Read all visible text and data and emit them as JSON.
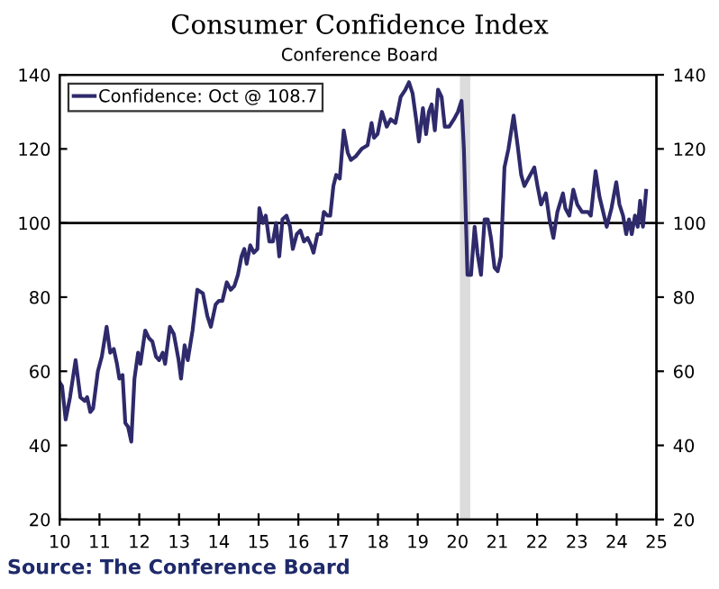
{
  "chart_data": {
    "type": "line",
    "title": "Consumer Confidence Index",
    "subtitle": "Conference Board",
    "annotations": [
      "Source: The Conference Board"
    ],
    "x": [
      2010.0,
      2010.06,
      2010.15,
      2010.26,
      2010.4,
      2010.52,
      2010.63,
      2010.69,
      2010.77,
      2010.84,
      2010.96,
      2011.06,
      2011.18,
      2011.27,
      2011.36,
      2011.44,
      2011.5,
      2011.58,
      2011.65,
      2011.72,
      2011.8,
      2011.88,
      2011.97,
      2012.03,
      2012.15,
      2012.24,
      2012.33,
      2012.42,
      2012.5,
      2012.59,
      2012.65,
      2012.77,
      2012.87,
      2012.99,
      2013.05,
      2013.14,
      2013.22,
      2013.34,
      2013.46,
      2013.6,
      2013.71,
      2013.8,
      2013.92,
      2014.0,
      2014.09,
      2014.2,
      2014.3,
      2014.39,
      2014.48,
      2014.57,
      2014.64,
      2014.7,
      2014.79,
      2014.88,
      2014.97,
      2015.02,
      2015.11,
      2015.18,
      2015.27,
      2015.36,
      2015.44,
      2015.52,
      2015.6,
      2015.7,
      2015.79,
      2015.86,
      2015.96,
      2016.05,
      2016.14,
      2016.23,
      2016.32,
      2016.38,
      2016.48,
      2016.56,
      2016.64,
      2016.73,
      2016.8,
      2016.88,
      2016.95,
      2017.04,
      2017.14,
      2017.24,
      2017.32,
      2017.44,
      2017.59,
      2017.74,
      2017.84,
      2017.9,
      2017.99,
      2018.1,
      2018.22,
      2018.32,
      2018.44,
      2018.57,
      2018.69,
      2018.78,
      2018.87,
      2018.96,
      2019.03,
      2019.13,
      2019.21,
      2019.28,
      2019.35,
      2019.43,
      2019.51,
      2019.6,
      2019.68,
      2019.79,
      2019.91,
      2020.01,
      2020.1,
      2020.16,
      2020.25,
      2020.34,
      2020.43,
      2020.5,
      2020.59,
      2020.68,
      2020.76,
      2020.84,
      2020.93,
      2021.01,
      2021.09,
      2021.18,
      2021.28,
      2021.41,
      2021.51,
      2021.6,
      2021.68,
      2021.78,
      2021.93,
      2022.01,
      2022.1,
      2022.22,
      2022.31,
      2022.41,
      2022.51,
      2022.65,
      2022.71,
      2022.81,
      2022.91,
      2023.01,
      2023.13,
      2023.28,
      2023.35,
      2023.47,
      2023.57,
      2023.66,
      2023.75,
      2023.87,
      2023.99,
      2024.07,
      2024.16,
      2024.24,
      2024.31,
      2024.38,
      2024.46,
      2024.53,
      2024.59,
      2024.66,
      2024.74
    ],
    "series": [
      {
        "name": "Confidence: Oct @ 108.7",
        "color": "#2e2a6b",
        "values": [
          57,
          56,
          47,
          53,
          63,
          53,
          52,
          53,
          49,
          50,
          60,
          64,
          72,
          65,
          66,
          62,
          58,
          59,
          46,
          45,
          41,
          58,
          65,
          62,
          71,
          69,
          68,
          64,
          63,
          65,
          62,
          72,
          70,
          63,
          58,
          67,
          63,
          71,
          82,
          81,
          75,
          72,
          78,
          79,
          79,
          84,
          82,
          83,
          86,
          91,
          93,
          89,
          94,
          92,
          93,
          104,
          100,
          102,
          95,
          95,
          100,
          91,
          101,
          102,
          99,
          93,
          97,
          98,
          95,
          96,
          94,
          92,
          97,
          97,
          103,
          102,
          102,
          110,
          113,
          112,
          125,
          119,
          117,
          118,
          120,
          121,
          127,
          123,
          124,
          130,
          126,
          128,
          127,
          134,
          136,
          138,
          135,
          128,
          122,
          131,
          124,
          130,
          132,
          125,
          136,
          134,
          126,
          126,
          128,
          130,
          133,
          120,
          86,
          86,
          99,
          92,
          86,
          101,
          101,
          96,
          88,
          87,
          91,
          115,
          120,
          129,
          121,
          113,
          110,
          112,
          115,
          110,
          105,
          108,
          101,
          96,
          103,
          108,
          104,
          102,
          109,
          105,
          103,
          103,
          102,
          114,
          107,
          103,
          99,
          104,
          111,
          105,
          102,
          97,
          101,
          97,
          102,
          99,
          106,
          99,
          108.7
        ]
      }
    ],
    "xlim": [
      2010,
      2025
    ],
    "xticks": [
      {
        "value": 2010,
        "label": "10"
      },
      {
        "value": 2011,
        "label": "11"
      },
      {
        "value": 2012,
        "label": "12"
      },
      {
        "value": 2013,
        "label": "13"
      },
      {
        "value": 2014,
        "label": "14"
      },
      {
        "value": 2015,
        "label": "15"
      },
      {
        "value": 2016,
        "label": "16"
      },
      {
        "value": 2017,
        "label": "17"
      },
      {
        "value": 2018,
        "label": "18"
      },
      {
        "value": 2019,
        "label": "19"
      },
      {
        "value": 2020,
        "label": "20"
      },
      {
        "value": 2021,
        "label": "21"
      },
      {
        "value": 2022,
        "label": "22"
      },
      {
        "value": 2023,
        "label": "23"
      },
      {
        "value": 2024,
        "label": "24"
      },
      {
        "value": 2025,
        "label": "25"
      }
    ],
    "ylim": [
      20,
      140
    ],
    "yticks": [
      20,
      40,
      60,
      80,
      100,
      120,
      140
    ],
    "y2lim": [
      20,
      140
    ],
    "y2ticks": [
      20,
      40,
      60,
      80,
      100,
      120,
      140
    ],
    "ref_lines": [
      {
        "axis": "y",
        "value": 100,
        "color": "#000000"
      }
    ],
    "bands": [
      {
        "axis": "x",
        "from": 2020.06,
        "to": 2020.32,
        "color": "#dcdcdc"
      }
    ],
    "legend": "top left",
    "grid": false
  }
}
